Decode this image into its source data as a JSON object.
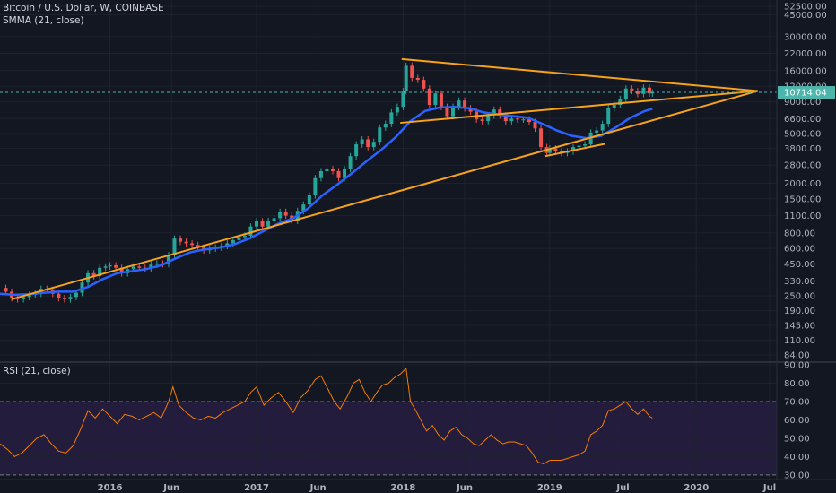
{
  "header": {
    "title": "Bitcoin / U.S. Dollar, W, COINBASE",
    "smma_label": "SMMA (21, close)",
    "rsi_label": "RSI (21, close)"
  },
  "colors": {
    "background": "#131722",
    "grid": "#1e222d",
    "up": "#26a69a",
    "down": "#ef5350",
    "smma": "#2962ff",
    "trendline": "#f7a21b",
    "rsi_line": "#f57c00",
    "rsi_band": "#2a1f45",
    "price_marker": "#4db6ac"
  },
  "chart_data": [
    {
      "type": "candlestick",
      "scale": "log",
      "ylim": [
        84,
        52500
      ],
      "price_ticks": [
        "52500.00",
        "45000.00",
        "30000.00",
        "22000.00",
        "16000.00",
        "12000.00",
        "9000.00",
        "6600.00",
        "5000.00",
        "3800.00",
        "2800.00",
        "2000.00",
        "1500.00",
        "1100.00",
        "800.00",
        "600.00",
        "450.00",
        "330.00",
        "250.00",
        "190.00",
        "145.00",
        "110.00",
        "84.00"
      ],
      "current_price_label": "10714.04",
      "current_price": 10714.04,
      "x_labels": [
        {
          "label": "2016",
          "t": 2016.0
        },
        {
          "label": "Jun",
          "t": 2016.42
        },
        {
          "label": "2017",
          "t": 2017.0
        },
        {
          "label": "Jun",
          "t": 2017.42
        },
        {
          "label": "2018",
          "t": 2018.0
        },
        {
          "label": "Jun",
          "t": 2018.42
        },
        {
          "label": "2019",
          "t": 2019.0
        },
        {
          "label": "Jul",
          "t": 2019.5
        },
        {
          "label": "2020",
          "t": 2020.0
        },
        {
          "label": "Jul",
          "t": 2020.5
        }
      ],
      "xlim": [
        2015.25,
        2020.5
      ],
      "close_series": [
        [
          2015.25,
          290
        ],
        [
          2015.29,
          270
        ],
        [
          2015.33,
          240
        ],
        [
          2015.37,
          235
        ],
        [
          2015.41,
          245
        ],
        [
          2015.45,
          255
        ],
        [
          2015.49,
          260
        ],
        [
          2015.53,
          285
        ],
        [
          2015.57,
          280
        ],
        [
          2015.61,
          260
        ],
        [
          2015.65,
          240
        ],
        [
          2015.69,
          235
        ],
        [
          2015.73,
          245
        ],
        [
          2015.77,
          265
        ],
        [
          2015.81,
          320
        ],
        [
          2015.85,
          380
        ],
        [
          2015.89,
          360
        ],
        [
          2015.93,
          420
        ],
        [
          2015.97,
          430
        ],
        [
          2016.0,
          440
        ],
        [
          2016.04,
          420
        ],
        [
          2016.08,
          380
        ],
        [
          2016.12,
          410
        ],
        [
          2016.16,
          430
        ],
        [
          2016.2,
          420
        ],
        [
          2016.24,
          415
        ],
        [
          2016.28,
          445
        ],
        [
          2016.32,
          455
        ],
        [
          2016.36,
          450
        ],
        [
          2016.4,
          530
        ],
        [
          2016.44,
          720
        ],
        [
          2016.48,
          680
        ],
        [
          2016.52,
          660
        ],
        [
          2016.56,
          640
        ],
        [
          2016.6,
          610
        ],
        [
          2016.64,
          580
        ],
        [
          2016.68,
          600
        ],
        [
          2016.72,
          610
        ],
        [
          2016.76,
          630
        ],
        [
          2016.8,
          660
        ],
        [
          2016.84,
          700
        ],
        [
          2016.88,
          740
        ],
        [
          2016.92,
          760
        ],
        [
          2016.96,
          900
        ],
        [
          2017.0,
          990
        ],
        [
          2017.04,
          900
        ],
        [
          2017.08,
          1000
        ],
        [
          2017.12,
          1050
        ],
        [
          2017.16,
          1180
        ],
        [
          2017.2,
          1100
        ],
        [
          2017.24,
          1000
        ],
        [
          2017.28,
          1200
        ],
        [
          2017.32,
          1350
        ],
        [
          2017.36,
          1600
        ],
        [
          2017.4,
          2200
        ],
        [
          2017.44,
          2500
        ],
        [
          2017.48,
          2600
        ],
        [
          2017.52,
          2500
        ],
        [
          2017.56,
          2200
        ],
        [
          2017.6,
          2600
        ],
        [
          2017.64,
          3300
        ],
        [
          2017.68,
          4100
        ],
        [
          2017.72,
          4500
        ],
        [
          2017.76,
          3900
        ],
        [
          2017.8,
          4300
        ],
        [
          2017.84,
          5600
        ],
        [
          2017.88,
          6000
        ],
        [
          2017.92,
          7400
        ],
        [
          2017.96,
          8200
        ],
        [
          2018.0,
          11000
        ],
        [
          2018.02,
          17500
        ],
        [
          2018.06,
          14000
        ],
        [
          2018.1,
          13500
        ],
        [
          2018.14,
          11500
        ],
        [
          2018.18,
          8500
        ],
        [
          2018.22,
          10500
        ],
        [
          2018.26,
          8200
        ],
        [
          2018.3,
          6900
        ],
        [
          2018.34,
          8200
        ],
        [
          2018.38,
          9200
        ],
        [
          2018.42,
          8000
        ],
        [
          2018.46,
          7500
        ],
        [
          2018.5,
          6500
        ],
        [
          2018.54,
          6300
        ],
        [
          2018.58,
          7000
        ],
        [
          2018.62,
          7800
        ],
        [
          2018.66,
          7000
        ],
        [
          2018.7,
          6300
        ],
        [
          2018.74,
          6600
        ],
        [
          2018.78,
          6500
        ],
        [
          2018.82,
          6500
        ],
        [
          2018.86,
          6200
        ],
        [
          2018.9,
          5500
        ],
        [
          2018.94,
          3900
        ],
        [
          2018.98,
          3500
        ],
        [
          2019.0,
          3800
        ],
        [
          2019.04,
          3600
        ],
        [
          2019.08,
          3500
        ],
        [
          2019.12,
          3600
        ],
        [
          2019.16,
          3900
        ],
        [
          2019.2,
          4000
        ],
        [
          2019.24,
          4100
        ],
        [
          2019.28,
          5100
        ],
        [
          2019.32,
          5300
        ],
        [
          2019.36,
          6000
        ],
        [
          2019.4,
          8000
        ],
        [
          2019.44,
          8500
        ],
        [
          2019.48,
          9500
        ],
        [
          2019.52,
          11500
        ],
        [
          2019.56,
          11000
        ],
        [
          2019.6,
          10400
        ],
        [
          2019.64,
          11700
        ],
        [
          2019.68,
          10500
        ],
        [
          2019.7,
          10714
        ]
      ],
      "smma_series": [
        [
          2015.25,
          260
        ],
        [
          2015.35,
          255
        ],
        [
          2015.45,
          258
        ],
        [
          2015.55,
          265
        ],
        [
          2015.65,
          270
        ],
        [
          2015.75,
          270
        ],
        [
          2015.85,
          295
        ],
        [
          2015.95,
          340
        ],
        [
          2016.05,
          380
        ],
        [
          2016.15,
          395
        ],
        [
          2016.25,
          410
        ],
        [
          2016.35,
          440
        ],
        [
          2016.45,
          500
        ],
        [
          2016.55,
          560
        ],
        [
          2016.65,
          590
        ],
        [
          2016.75,
          610
        ],
        [
          2016.85,
          650
        ],
        [
          2016.95,
          720
        ],
        [
          2017.05,
          830
        ],
        [
          2017.15,
          950
        ],
        [
          2017.25,
          1050
        ],
        [
          2017.35,
          1250
        ],
        [
          2017.45,
          1600
        ],
        [
          2017.55,
          1950
        ],
        [
          2017.65,
          2400
        ],
        [
          2017.75,
          3000
        ],
        [
          2017.85,
          3700
        ],
        [
          2017.95,
          4700
        ],
        [
          2018.05,
          6300
        ],
        [
          2018.15,
          7600
        ],
        [
          2018.25,
          8100
        ],
        [
          2018.35,
          8200
        ],
        [
          2018.45,
          8000
        ],
        [
          2018.55,
          7400
        ],
        [
          2018.65,
          7100
        ],
        [
          2018.75,
          6900
        ],
        [
          2018.85,
          6700
        ],
        [
          2018.95,
          6000
        ],
        [
          2019.05,
          5300
        ],
        [
          2019.15,
          4800
        ],
        [
          2019.25,
          4600
        ],
        [
          2019.35,
          4800
        ],
        [
          2019.45,
          5600
        ],
        [
          2019.55,
          6700
        ],
        [
          2019.65,
          7600
        ],
        [
          2019.7,
          7900
        ]
      ],
      "trendlines": [
        {
          "from": [
            2015.33,
            235
          ],
          "to": [
            2020.42,
            11000
          ]
        },
        {
          "from": [
            2017.98,
            6100
          ],
          "to": [
            2020.42,
            11000
          ]
        },
        {
          "from": [
            2017.99,
            19800
          ],
          "to": [
            2020.42,
            11000
          ]
        },
        {
          "from": [
            2018.97,
            3300
          ],
          "to": [
            2019.38,
            4150
          ]
        }
      ]
    },
    {
      "type": "line",
      "title": "RSI (21, close)",
      "ylim": [
        28,
        91
      ],
      "y_ticks": [
        "90.00",
        "80.00",
        "70.00",
        "60.00",
        "50.00",
        "40.00",
        "30.00"
      ],
      "band": [
        30,
        70
      ],
      "series": [
        [
          2015.25,
          47
        ],
        [
          2015.3,
          44
        ],
        [
          2015.35,
          40
        ],
        [
          2015.4,
          42
        ],
        [
          2015.45,
          46
        ],
        [
          2015.5,
          50
        ],
        [
          2015.55,
          52
        ],
        [
          2015.6,
          47
        ],
        [
          2015.65,
          43
        ],
        [
          2015.7,
          42
        ],
        [
          2015.75,
          46
        ],
        [
          2015.8,
          55
        ],
        [
          2015.85,
          65
        ],
        [
          2015.9,
          61
        ],
        [
          2015.95,
          66
        ],
        [
          2016.0,
          62
        ],
        [
          2016.05,
          58
        ],
        [
          2016.1,
          63
        ],
        [
          2016.15,
          62
        ],
        [
          2016.2,
          60
        ],
        [
          2016.25,
          62
        ],
        [
          2016.3,
          64
        ],
        [
          2016.35,
          61
        ],
        [
          2016.4,
          70
        ],
        [
          2016.43,
          78
        ],
        [
          2016.47,
          68
        ],
        [
          2016.52,
          64
        ],
        [
          2016.57,
          61
        ],
        [
          2016.62,
          60
        ],
        [
          2016.67,
          62
        ],
        [
          2016.72,
          61
        ],
        [
          2016.77,
          64
        ],
        [
          2016.82,
          66
        ],
        [
          2016.87,
          68
        ],
        [
          2016.92,
          70
        ],
        [
          2016.96,
          75
        ],
        [
          2017.0,
          78
        ],
        [
          2017.05,
          68
        ],
        [
          2017.1,
          72
        ],
        [
          2017.15,
          75
        ],
        [
          2017.2,
          70
        ],
        [
          2017.25,
          64
        ],
        [
          2017.3,
          72
        ],
        [
          2017.35,
          76
        ],
        [
          2017.4,
          82
        ],
        [
          2017.44,
          84
        ],
        [
          2017.48,
          78
        ],
        [
          2017.53,
          70
        ],
        [
          2017.57,
          66
        ],
        [
          2017.62,
          73
        ],
        [
          2017.66,
          80
        ],
        [
          2017.7,
          82
        ],
        [
          2017.74,
          75
        ],
        [
          2017.78,
          70
        ],
        [
          2017.82,
          75
        ],
        [
          2017.86,
          79
        ],
        [
          2017.9,
          80
        ],
        [
          2017.94,
          83
        ],
        [
          2017.98,
          85
        ],
        [
          2018.02,
          88
        ],
        [
          2018.05,
          70
        ],
        [
          2018.08,
          66
        ],
        [
          2018.12,
          60
        ],
        [
          2018.16,
          54
        ],
        [
          2018.2,
          57
        ],
        [
          2018.24,
          52
        ],
        [
          2018.28,
          49
        ],
        [
          2018.32,
          54
        ],
        [
          2018.36,
          56
        ],
        [
          2018.4,
          52
        ],
        [
          2018.44,
          50
        ],
        [
          2018.48,
          47
        ],
        [
          2018.52,
          46
        ],
        [
          2018.56,
          49
        ],
        [
          2018.6,
          52
        ],
        [
          2018.64,
          49
        ],
        [
          2018.68,
          47
        ],
        [
          2018.72,
          48
        ],
        [
          2018.76,
          48
        ],
        [
          2018.8,
          47
        ],
        [
          2018.84,
          46
        ],
        [
          2018.88,
          42
        ],
        [
          2018.92,
          37
        ],
        [
          2018.96,
          36
        ],
        [
          2019.0,
          38
        ],
        [
          2019.04,
          38
        ],
        [
          2019.08,
          38
        ],
        [
          2019.12,
          39
        ],
        [
          2019.16,
          40
        ],
        [
          2019.2,
          41
        ],
        [
          2019.24,
          43
        ],
        [
          2019.28,
          52
        ],
        [
          2019.32,
          54
        ],
        [
          2019.36,
          57
        ],
        [
          2019.4,
          65
        ],
        [
          2019.44,
          66
        ],
        [
          2019.48,
          68
        ],
        [
          2019.52,
          70
        ],
        [
          2019.56,
          66
        ],
        [
          2019.6,
          63
        ],
        [
          2019.64,
          66
        ],
        [
          2019.68,
          62
        ],
        [
          2019.7,
          61
        ]
      ]
    }
  ]
}
